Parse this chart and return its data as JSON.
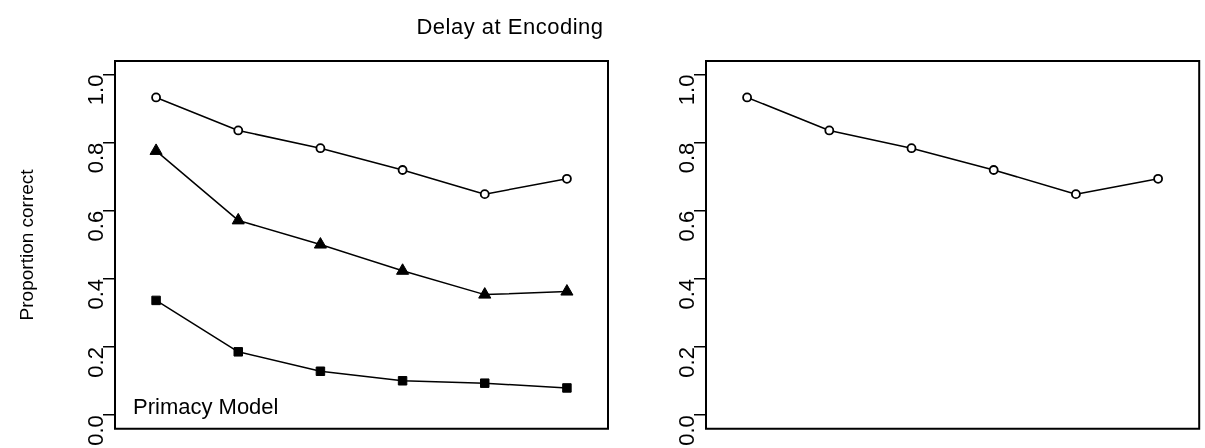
{
  "chart_data": [
    {
      "type": "line",
      "title": "Delay at Encoding",
      "ylabel": "Proportion correct",
      "categories": [
        null,
        null,
        null,
        null,
        null,
        null
      ],
      "ylim": [
        -0.04,
        1.04
      ],
      "yticks": [
        {
          "value": 0,
          "label": "0.0"
        },
        {
          "value": 0.2,
          "label": "0.2"
        },
        {
          "value": 0.4,
          "label": "0.4"
        },
        {
          "value": 0.6,
          "label": "0.6"
        },
        {
          "value": 0.8,
          "label": "0.8"
        },
        {
          "value": 1,
          "label": "1.0"
        }
      ],
      "tick_labels": "y",
      "grid": false,
      "legend": false,
      "annotations": [
        "Primacy Model"
      ],
      "series": [
        {
          "color": "#000000",
          "marker": "circle",
          "values": [
            0.933,
            0.836,
            0.784,
            0.72,
            0.649,
            0.694
          ]
        },
        {
          "color": "#000000",
          "marker": "triangle",
          "values": [
            0.776,
            0.572,
            0.501,
            0.424,
            0.354,
            0.363
          ]
        },
        {
          "color": "#000000",
          "marker": "square",
          "values": [
            0.337,
            0.186,
            0.129,
            0.101,
            0.094,
            0.08
          ]
        }
      ]
    },
    {
      "type": "line",
      "categories": [
        null,
        null,
        null,
        null,
        null,
        null
      ],
      "ylim": [
        -0.04,
        1.04
      ],
      "yticks": [
        {
          "value": 0,
          "label": "0.0"
        },
        {
          "value": 0.2,
          "label": "0.2"
        },
        {
          "value": 0.4,
          "label": "0.4"
        },
        {
          "value": 0.6,
          "label": "0.6"
        },
        {
          "value": 0.8,
          "label": "0.8"
        },
        {
          "value": 1,
          "label": "1.0"
        }
      ],
      "tick_labels": "y",
      "grid": false,
      "legend": false,
      "series": [
        {
          "color": "#000000",
          "marker": "circle",
          "values": [
            0.933,
            0.836,
            0.784,
            0.72,
            0.649,
            0.694
          ]
        }
      ]
    }
  ]
}
